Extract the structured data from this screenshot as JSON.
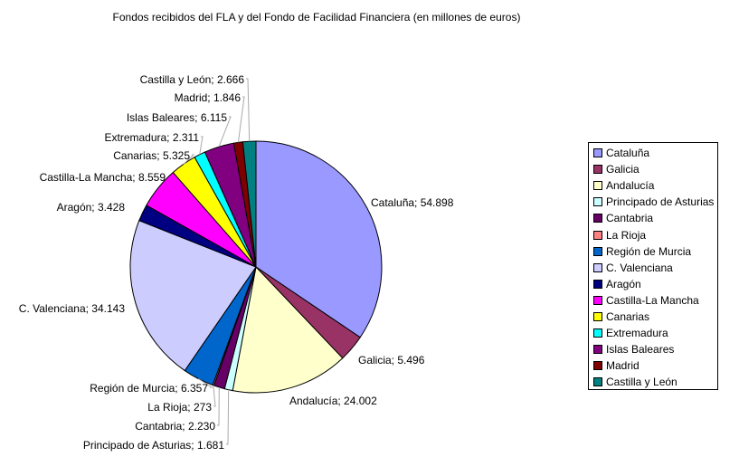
{
  "chart_data": {
    "type": "pie",
    "title": "Fondos recibidos del FLA y del Fondo de Facilidad Financiera (en millones de euros)",
    "categories": [
      "Cataluña",
      "Galicia",
      "Andalucía",
      "Principado de Asturias",
      "Cantabria",
      "La Rioja",
      "Región de Murcia",
      "C. Valenciana",
      "Aragón",
      "Castilla-La Mancha",
      "Canarias",
      "Extremadura",
      "Islas Baleares",
      "Madrid",
      "Castilla y León"
    ],
    "values": [
      54898,
      5496,
      24002,
      1681,
      2230,
      273,
      6357,
      34143,
      3428,
      8559,
      5325,
      2311,
      6115,
      1846,
      2666
    ],
    "data_labels": [
      "Cataluña; 54.898",
      "Galicia; 5.496",
      "Andalucía; 24.002",
      "Principado de Asturias; 1.681",
      "Cantabria; 2.230",
      "La Rioja; 273",
      "Región de Murcia; 6.357",
      "C. Valenciana; 34.143",
      "Aragón; 3.428",
      "Castilla-La Mancha; 8.559",
      "Canarias; 5.325",
      "Extremadura; 2.311",
      "Islas Baleares; 6.115",
      "Madrid; 1.846",
      "Castilla y León; 2.666"
    ],
    "colors": [
      "#9999FF",
      "#993366",
      "#FFFFCC",
      "#CCFFFF",
      "#660066",
      "#FF8080",
      "#0066CC",
      "#CCCCFF",
      "#000080",
      "#FF00FF",
      "#FFFF00",
      "#00FFFF",
      "#800080",
      "#800000",
      "#008080"
    ],
    "legend_position": "right"
  }
}
